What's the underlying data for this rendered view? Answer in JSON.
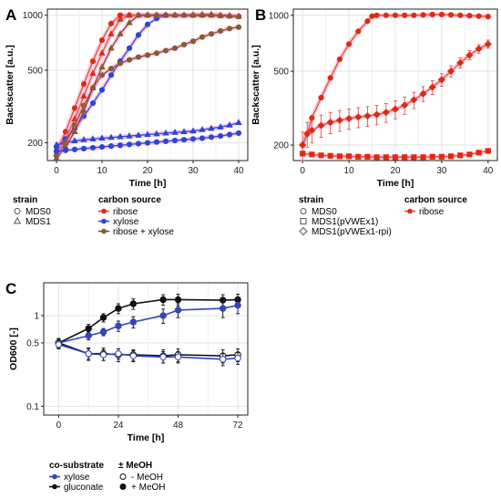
{
  "panels": {
    "A": {
      "letter": "A"
    },
    "B": {
      "letter": "B"
    },
    "C": {
      "letter": "C"
    }
  },
  "colors": {
    "ribose": "#d9541e",
    "ribose_marker": "#e02a10",
    "xylose": "#2946d6",
    "ribose_xylose": "#7a4a2c",
    "ribose_xylose_marker": "#8a5a30",
    "gluconate": "#111111",
    "c_xylose": "#3344bb",
    "pink_err": "#ff6ec7"
  },
  "chart_data": [
    {
      "id": "A",
      "type": "line",
      "xlabel": "Time [h]",
      "ylabel": "Backscatter [a.u.]",
      "xlim": [
        -2,
        42
      ],
      "ylim": [
        160,
        1080
      ],
      "yscale": "log",
      "xticks": [
        0,
        10,
        20,
        30,
        40
      ],
      "yticks": [
        200,
        500,
        1000
      ],
      "grid": true,
      "series": [
        {
          "key": "ribose",
          "marker": "circle",
          "x": [
            0,
            2,
            4,
            6,
            8,
            10,
            12,
            14,
            16,
            18,
            20,
            22,
            24,
            26,
            28,
            30,
            32,
            34,
            36,
            38,
            40
          ],
          "values": [
            180,
            230,
            310,
            420,
            560,
            730,
            900,
            1000,
            1000,
            1000,
            1000,
            1000,
            1000,
            1000,
            1000,
            1000,
            1000,
            1000,
            995,
            990,
            985
          ]
        },
        {
          "key": "ribose",
          "marker": "triangle",
          "x": [
            0,
            2,
            4,
            6,
            8,
            10,
            12,
            14,
            16,
            18,
            20,
            22,
            24,
            26,
            28,
            30,
            32,
            34,
            36,
            38,
            40
          ],
          "values": [
            175,
            210,
            270,
            360,
            480,
            620,
            790,
            950,
            1000,
            1000,
            1000,
            1000,
            1000,
            1000,
            1000,
            1005,
            1010,
            1010,
            1000,
            995,
            990
          ]
        },
        {
          "key": "xylose",
          "marker": "circle",
          "x": [
            0,
            2,
            4,
            6,
            8,
            10,
            12,
            14,
            16,
            18,
            20,
            22,
            24
          ],
          "values": [
            190,
            210,
            240,
            280,
            330,
            390,
            470,
            560,
            660,
            780,
            890,
            960,
            1000
          ]
        },
        {
          "key": "xylose",
          "marker": "triangle",
          "x": [
            0,
            2,
            4,
            6,
            8,
            10,
            12,
            14,
            16,
            18,
            20,
            22,
            24,
            26,
            28,
            30,
            32,
            34,
            36,
            38,
            40
          ],
          "values": [
            195,
            200,
            205,
            208,
            210,
            212,
            214,
            216,
            218,
            220,
            222,
            224,
            226,
            228,
            230,
            232,
            236,
            240,
            244,
            250,
            258
          ]
        },
        {
          "key": "ribose_xylose",
          "marker": "circle",
          "x": [
            0,
            2,
            4,
            6,
            8,
            10,
            12,
            14,
            16,
            18,
            20,
            22,
            24,
            26,
            28,
            30,
            32,
            34,
            36,
            38,
            40
          ],
          "values": [
            170,
            200,
            250,
            320,
            400,
            470,
            510,
            545,
            570,
            590,
            605,
            620,
            640,
            660,
            690,
            720,
            760,
            790,
            820,
            845,
            860
          ]
        },
        {
          "key": "ribose_xylose",
          "marker": "triangle",
          "x": [
            0,
            2,
            4,
            6,
            8,
            10,
            12,
            14,
            16,
            18,
            20,
            22,
            24,
            26,
            28,
            30,
            32,
            34,
            36,
            38,
            40
          ],
          "values": [
            165,
            190,
            230,
            300,
            400,
            520,
            660,
            790,
            910,
            1000,
            1000,
            1000,
            1000,
            1000,
            1000,
            1000,
            1000,
            1000,
            995,
            990,
            985
          ]
        },
        {
          "key": "xylose",
          "marker": "circle",
          "tail": true,
          "x": [
            0,
            2,
            4,
            6,
            8,
            10,
            12,
            14,
            16,
            18,
            20,
            22,
            24,
            26,
            28,
            30,
            32,
            34,
            36,
            38,
            40
          ],
          "values": [
            180,
            182,
            184,
            186,
            188,
            190,
            192,
            194,
            196,
            198,
            200,
            202,
            204,
            206,
            208,
            210,
            212,
            215,
            218,
            222,
            226
          ]
        }
      ],
      "legend": {
        "strain_title": "strain",
        "strain_items": [
          {
            "label": "MDS0",
            "marker": "circle"
          },
          {
            "label": "MDS1",
            "marker": "triangle"
          }
        ],
        "carbon_title": "carbon source",
        "carbon_items": [
          {
            "label": "ribose",
            "key": "ribose"
          },
          {
            "label": "xylose",
            "key": "xylose"
          },
          {
            "label": "ribose + xylose",
            "key": "ribose_xylose"
          }
        ]
      }
    },
    {
      "id": "B",
      "type": "line",
      "xlabel": "Time [h]",
      "ylabel": "Backscatter [a.u.]",
      "xlim": [
        -2,
        42
      ],
      "ylim": [
        165,
        1080
      ],
      "yscale": "log",
      "xticks": [
        0,
        10,
        20,
        30,
        40
      ],
      "yticks": [
        200,
        500,
        1000
      ],
      "grid": true,
      "series": [
        {
          "key": "ribose",
          "marker": "circle",
          "x": [
            0,
            1,
            2,
            4,
            6,
            8,
            10,
            12,
            14,
            15,
            16,
            18,
            20,
            22,
            24,
            26,
            28,
            30,
            32,
            34,
            36,
            38,
            40
          ],
          "values": [
            200,
            230,
            280,
            360,
            460,
            580,
            700,
            820,
            930,
            990,
            1000,
            1000,
            1000,
            1000,
            1000,
            1005,
            1010,
            1010,
            1005,
            1000,
            995,
            990,
            985
          ],
          "errors": 0
        },
        {
          "key": "ribose",
          "marker": "diamond",
          "x": [
            0,
            1,
            2,
            4,
            6,
            8,
            10,
            12,
            14,
            16,
            18,
            20,
            22,
            24,
            26,
            28,
            30,
            32,
            34,
            36,
            38,
            40
          ],
          "values": [
            200,
            230,
            240,
            255,
            265,
            272,
            278,
            283,
            287,
            292,
            300,
            312,
            328,
            350,
            378,
            410,
            450,
            500,
            555,
            610,
            660,
            700
          ],
          "errors": 35
        },
        {
          "key": "ribose",
          "marker": "square",
          "x": [
            0,
            2,
            4,
            6,
            8,
            10,
            12,
            14,
            16,
            18,
            20,
            22,
            24,
            26,
            28,
            30,
            32,
            34,
            36,
            38,
            40
          ],
          "values": [
            180,
            178,
            176,
            175,
            174,
            174,
            173,
            173,
            172,
            172,
            172,
            172,
            172,
            172,
            173,
            173,
            174,
            176,
            178,
            182,
            186
          ],
          "errors": 0
        }
      ],
      "legend": {
        "strain_title": "strain",
        "strain_items": [
          {
            "label": "MDS0",
            "marker": "circle"
          },
          {
            "label": "MDS1(pVWEx1)",
            "marker": "square"
          },
          {
            "label": "MDS1(pVWEx1-rpi)",
            "marker": "diamond"
          }
        ],
        "carbon_title": "carbon source",
        "carbon_items": [
          {
            "label": "ribose",
            "key": "ribose"
          }
        ]
      }
    },
    {
      "id": "C",
      "type": "line",
      "xlabel": "Time [h]",
      "ylabel": "OD600 [-]",
      "xlim": [
        -6,
        76
      ],
      "ylim": [
        0.08,
        2.3
      ],
      "yscale": "log",
      "xticks": [
        0,
        24,
        48,
        72
      ],
      "yticks": [
        0.1,
        0.5,
        1
      ],
      "grid": true,
      "series": [
        {
          "key": "gluconate",
          "marker": "circle",
          "fill": "filled",
          "x": [
            0,
            12,
            18,
            24,
            30,
            42,
            48,
            66,
            72
          ],
          "values": [
            0.5,
            0.72,
            0.95,
            1.2,
            1.35,
            1.5,
            1.5,
            1.48,
            1.5
          ],
          "errors": [
            0.06,
            0.08,
            0.1,
            0.15,
            0.18,
            0.2,
            0.22,
            0.22,
            0.22
          ]
        },
        {
          "key": "c_xylose",
          "marker": "circle",
          "fill": "filled",
          "x": [
            0,
            12,
            18,
            24,
            30,
            42,
            48,
            66,
            72
          ],
          "values": [
            0.5,
            0.6,
            0.66,
            0.77,
            0.85,
            1.0,
            1.15,
            1.2,
            1.3
          ],
          "errors": [
            0.06,
            0.06,
            0.06,
            0.1,
            0.12,
            0.18,
            0.2,
            0.25,
            0.25
          ]
        },
        {
          "key": "gluconate",
          "marker": "circle",
          "fill": "open",
          "x": [
            0,
            12,
            18,
            24,
            30,
            42,
            48,
            66,
            72
          ],
          "values": [
            0.5,
            0.38,
            0.38,
            0.37,
            0.37,
            0.36,
            0.37,
            0.36,
            0.37
          ],
          "errors": [
            0.05,
            0.06,
            0.06,
            0.06,
            0.05,
            0.06,
            0.06,
            0.06,
            0.06
          ]
        },
        {
          "key": "c_xylose",
          "marker": "circle",
          "fill": "open",
          "x": [
            0,
            12,
            18,
            24,
            30,
            42,
            48,
            66,
            72
          ],
          "values": [
            0.48,
            0.38,
            0.37,
            0.38,
            0.36,
            0.35,
            0.35,
            0.33,
            0.34
          ],
          "errors": [
            0.05,
            0.05,
            0.05,
            0.05,
            0.05,
            0.05,
            0.05,
            0.05,
            0.05
          ]
        }
      ],
      "legend": {
        "cosub_title": "co-substrate",
        "cosub_items": [
          {
            "label": "xylose",
            "key": "c_xylose"
          },
          {
            "label": "gluconate",
            "key": "gluconate"
          }
        ],
        "meoh_title": "± MeOH",
        "meoh_items": [
          {
            "label": "- MeOH",
            "fill": "open"
          },
          {
            "label": "+ MeOH",
            "fill": "filled"
          }
        ]
      }
    }
  ]
}
